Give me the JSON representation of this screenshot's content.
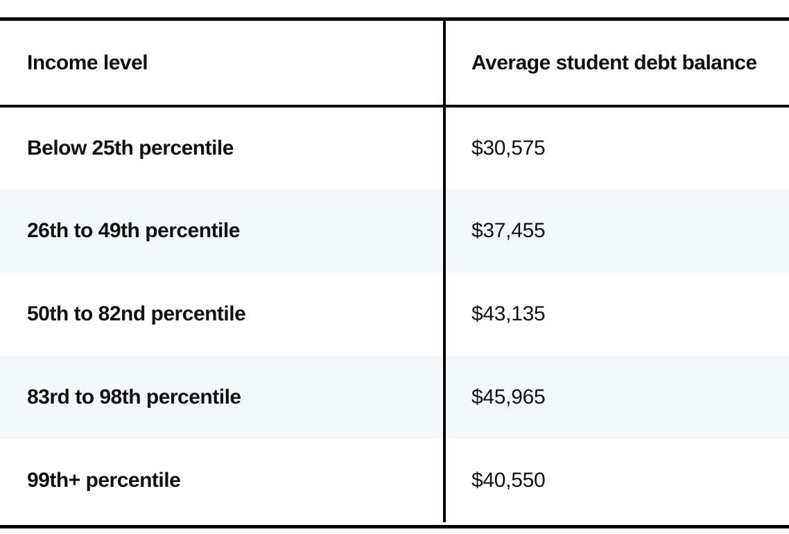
{
  "chart_data": {
    "type": "table",
    "columns": [
      "Income level",
      "Average student debt balance"
    ],
    "rows": [
      {
        "income_level": "Below 25th percentile",
        "balance": "$30,575",
        "value": 30575
      },
      {
        "income_level": "26th to 49th percentile",
        "balance": "$37,455",
        "value": 37455
      },
      {
        "income_level": "50th to 82nd percentile",
        "balance": "$43,135",
        "value": 43135
      },
      {
        "income_level": "83rd to 98th percentile",
        "balance": "$45,965",
        "value": 45965
      },
      {
        "income_level": "99th+ percentile",
        "balance": "$40,550",
        "value": 40550
      }
    ]
  },
  "colors": {
    "row_shade": "#f3f9fb",
    "rule": "#000000",
    "text": "#111111"
  }
}
